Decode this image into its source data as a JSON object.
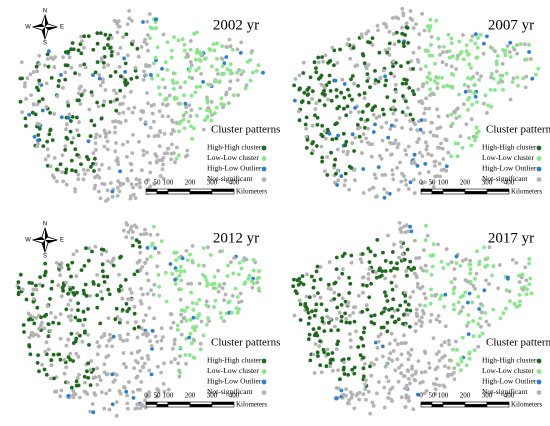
{
  "panels": [
    {
      "title": "2002 yr",
      "compass": {
        "n": "N",
        "w": "W",
        "e": "E",
        "s": "S"
      },
      "legend": {
        "title": "Cluster patterns",
        "items": [
          {
            "label": "High-High  cluster",
            "color": "#1e6b1e"
          },
          {
            "label": "Low-Low  cluster",
            "color": "#86e886"
          },
          {
            "label": "High-Low  Outlier",
            "color": "#2a7fd6"
          },
          {
            "label": "Not-significant",
            "color": "#b3b3b3"
          }
        ]
      },
      "scale": {
        "ticks": [
          0,
          50,
          100,
          200,
          300,
          400
        ],
        "unit": "Kilometers"
      }
    },
    {
      "title": "2007 yr",
      "legend": {
        "title": "Cluster patterns",
        "items": [
          {
            "label": "High-High  cluster",
            "color": "#1e6b1e"
          },
          {
            "label": "Low-Low  cluster",
            "color": "#86e886"
          },
          {
            "label": "High-Low  Outlier",
            "color": "#2a7fd6"
          },
          {
            "label": "Not-significant",
            "color": "#b3b3b3"
          }
        ]
      },
      "scale": {
        "ticks": [
          0,
          50,
          100,
          200,
          300,
          400
        ],
        "unit": "Kilometers"
      }
    },
    {
      "title": "2012 yr",
      "compass": {
        "n": "N",
        "w": "W",
        "e": "E",
        "s": "S"
      },
      "legend": {
        "title": "Cluster patterns",
        "items": [
          {
            "label": "High-High  cluster",
            "color": "#1e6b1e"
          },
          {
            "label": "Low-Low  cluster",
            "color": "#86e886"
          },
          {
            "label": "High-Low  Outlier",
            "color": "#2a7fd6"
          },
          {
            "label": "Not-significant",
            "color": "#b3b3b3"
          }
        ]
      },
      "scale": {
        "ticks": [
          0,
          50,
          100,
          200,
          300,
          400
        ],
        "unit": "Kilometers"
      }
    },
    {
      "title": "2017 yr",
      "legend": {
        "title": "Cluster patterns",
        "items": [
          {
            "label": "High-High  cluster",
            "color": "#1e6b1e"
          },
          {
            "label": "Low-Low  cluster",
            "color": "#86e886"
          },
          {
            "label": "High-Low  Outlier",
            "color": "#2a7fd6"
          },
          {
            "label": "Not-significant",
            "color": "#b3b3b3"
          }
        ]
      },
      "scale": {
        "ticks": [
          0,
          50,
          100,
          200,
          300,
          400
        ],
        "unit": "Kilometers"
      }
    }
  ]
}
